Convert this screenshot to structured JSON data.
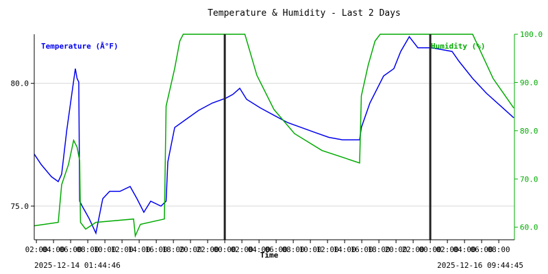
{
  "chart_data": {
    "type": "line",
    "title": "Temperature & Humidity - Last 2 Days",
    "xlabel": "Time",
    "start_label": "2025-12-14 01:44:46",
    "end_label": "2025-12-16 09:44:45",
    "x_unit": "hours since start",
    "xlim": [
      0,
      56
    ],
    "x_tick_labels": [
      "02:00",
      "04:00",
      "06:00",
      "08:00",
      "10:00",
      "12:00",
      "14:00",
      "16:00",
      "18:00",
      "20:00",
      "22:00",
      "00:00",
      "02:00",
      "04:00",
      "06:00",
      "08:00",
      "10:00",
      "12:00",
      "14:00",
      "16:00",
      "18:00",
      "20:00",
      "22:00",
      "00:00",
      "02:00",
      "04:00",
      "06:00",
      "08:00"
    ],
    "x_tick_first_hour": 0.25,
    "x_tick_step_hours": 2,
    "midnight_markers_hours": [
      22.25,
      46.25
    ],
    "left_axis": {
      "label": "Temperature (Â°F)",
      "ylim": [
        73.63,
        82.0
      ],
      "ticks": [
        75.0,
        80.0
      ],
      "tick_labels": [
        "75.0",
        "80.0"
      ],
      "color": "#0000ee"
    },
    "right_axis": {
      "label": "Humidity (%)",
      "ylim": [
        57.4,
        100.0
      ],
      "ticks": [
        60,
        70,
        80,
        90,
        100
      ],
      "tick_labels": [
        "60.0",
        "70.0",
        "80.0",
        "90.0",
        "100.0"
      ],
      "color": "#00aa00"
    },
    "grid": true,
    "series": [
      {
        "name": "Temperature (Â°F)",
        "axis": "left",
        "color": "#0000ee",
        "x": [
          0,
          0.8,
          2,
          2.8,
          3.2,
          3.8,
          4.4,
          4.8,
          5.0,
          5.2,
          5.3,
          5.6,
          6.4,
          7.2,
          8,
          8.8,
          10,
          11.2,
          12,
          12.8,
          13.6,
          14.8,
          15.4,
          15.6,
          16.4,
          17.6,
          19.2,
          20.8,
          22.4,
          23.2,
          24,
          24.8,
          26.4,
          28,
          29.6,
          31.2,
          32.8,
          34.4,
          36,
          38,
          38.2,
          39.2,
          40.8,
          42,
          42.8,
          43.8,
          44.8,
          46.4,
          48.8,
          49.6,
          51.2,
          52.8,
          54.4,
          56
        ],
        "y": [
          77.12,
          76.7,
          76.2,
          76.0,
          76.3,
          78.1,
          79.6,
          80.6,
          80.2,
          80.05,
          75.2,
          75.0,
          74.5,
          73.9,
          75.3,
          75.6,
          75.6,
          75.8,
          75.3,
          74.75,
          75.2,
          75.0,
          75.2,
          76.8,
          78.2,
          78.5,
          78.9,
          79.2,
          79.4,
          79.55,
          79.8,
          79.35,
          79.0,
          78.7,
          78.4,
          78.2,
          78.0,
          77.8,
          77.7,
          77.7,
          78.2,
          79.2,
          80.3,
          80.6,
          81.3,
          81.9,
          81.45,
          81.45,
          81.3,
          80.9,
          80.2,
          79.6,
          79.1,
          78.6
        ]
      },
      {
        "name": "Humidity (%)",
        "axis": "right",
        "color": "#00aa00",
        "x": [
          0,
          2.8,
          3.2,
          4,
          4.6,
          5,
          5.3,
          5.4,
          6,
          7.2,
          11.6,
          11.8,
          12.4,
          15.2,
          15.4,
          16.4,
          17,
          17.4,
          24.6,
          26,
          28,
          30.4,
          33.6,
          36,
          38,
          38.2,
          39,
          39.8,
          40.4,
          51.2,
          53.6,
          56
        ],
        "y": [
          60.3,
          61.0,
          68.8,
          73.0,
          78.0,
          76.6,
          73.8,
          61.0,
          59.6,
          61.0,
          61.7,
          58.2,
          60.6,
          61.7,
          85.1,
          92.9,
          98.6,
          100,
          100,
          91.5,
          84.4,
          79.4,
          75.9,
          74.5,
          73.3,
          87.2,
          93.6,
          98.6,
          100,
          100,
          90.8,
          84.7
        ]
      }
    ]
  }
}
